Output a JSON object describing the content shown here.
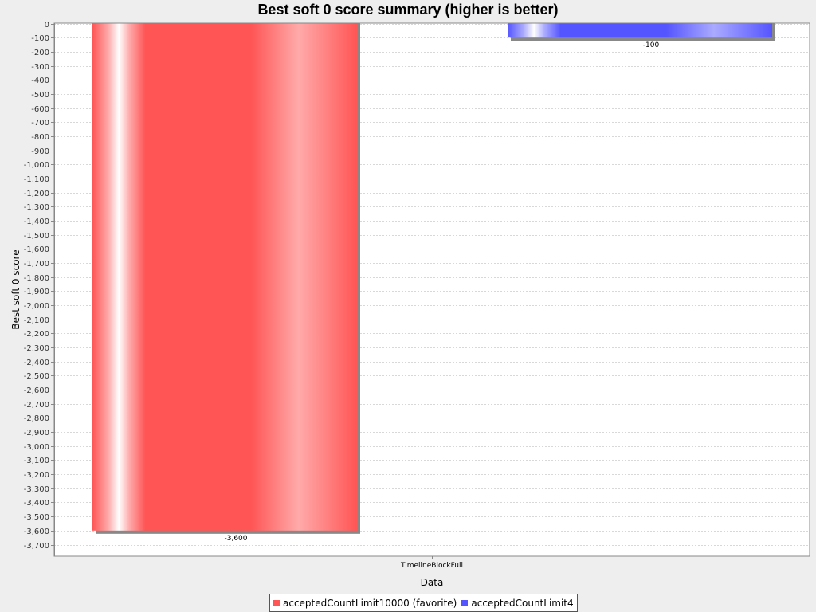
{
  "chart_data": {
    "type": "bar",
    "title": "Best soft 0 score summary (higher is better)",
    "xlabel": "Data",
    "ylabel": "Best soft 0 score",
    "categories": [
      "TimelineBlockFull"
    ],
    "series": [
      {
        "name": "acceptedCountLimit10000 (favorite)",
        "values": [
          -3600
        ],
        "color": "#ff5555",
        "data_label": "-3,600"
      },
      {
        "name": "acceptedCountLimit4",
        "values": [
          -100
        ],
        "color": "#5555ff",
        "data_label": "-100"
      }
    ],
    "ylim": [
      -3720,
      0
    ],
    "yticks": [
      0,
      -100,
      -200,
      -300,
      -400,
      -500,
      -600,
      -700,
      -800,
      -900,
      -1000,
      -1100,
      -1200,
      -1300,
      -1400,
      -1500,
      -1600,
      -1700,
      -1800,
      -1900,
      -2000,
      -2100,
      -2200,
      -2300,
      -2400,
      -2500,
      -2600,
      -2700,
      -2800,
      -2900,
      -3000,
      -3100,
      -3200,
      -3300,
      -3400,
      -3500,
      -3600,
      -3700
    ],
    "ytick_labels": [
      "0",
      "-100",
      "-200",
      "-300",
      "-400",
      "-500",
      "-600",
      "-700",
      "-800",
      "-900",
      "-1,000",
      "-1,100",
      "-1,200",
      "-1,300",
      "-1,400",
      "-1,500",
      "-1,600",
      "-1,700",
      "-1,800",
      "-1,900",
      "-2,000",
      "-2,100",
      "-2,200",
      "-2,300",
      "-2,400",
      "-2,500",
      "-2,600",
      "-2,700",
      "-2,800",
      "-2,900",
      "-3,000",
      "-3,100",
      "-3,200",
      "-3,300",
      "-3,400",
      "-3,500",
      "-3,600",
      "-3,700"
    ],
    "grid": true,
    "legend_position": "bottom"
  }
}
